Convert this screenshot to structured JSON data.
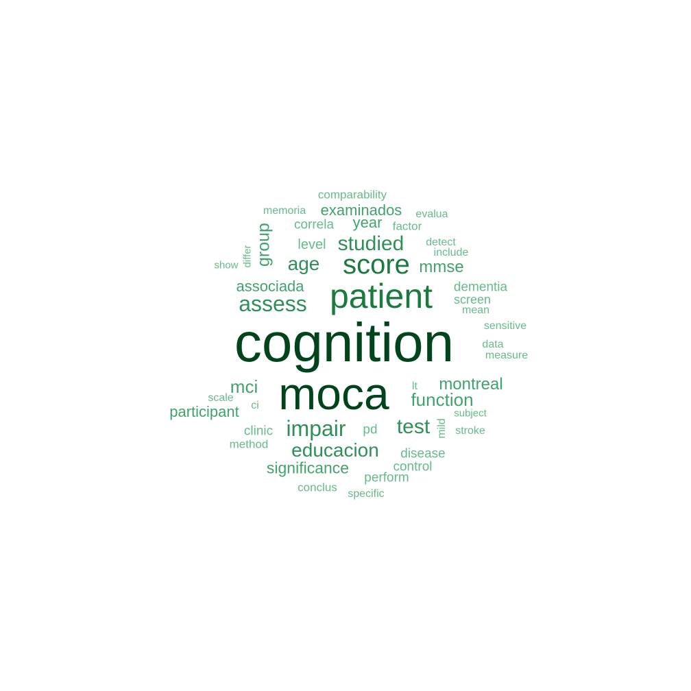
{
  "palette": {
    "tier1": "#00441b",
    "tier2": "#1b7a3e",
    "tier3": "#2f8f58",
    "tier4": "#41a36b",
    "tier5": "#66bb88"
  },
  "words": [
    {
      "text": "cognition",
      "tier": 1,
      "vertical": false
    },
    {
      "text": "moca",
      "tier": 1,
      "vertical": false
    },
    {
      "text": "patient",
      "tier": 2,
      "vertical": false
    },
    {
      "text": "score",
      "tier": 2,
      "vertical": false
    },
    {
      "text": "assess",
      "tier": 3,
      "vertical": false
    },
    {
      "text": "studied",
      "tier": 3,
      "vertical": false
    },
    {
      "text": "impair",
      "tier": 3,
      "vertical": false
    },
    {
      "text": "educacion",
      "tier": 3,
      "vertical": false
    },
    {
      "text": "test",
      "tier": 3,
      "vertical": false
    },
    {
      "text": "age",
      "tier": 3,
      "vertical": false
    },
    {
      "text": "function",
      "tier": 4,
      "vertical": false
    },
    {
      "text": "group",
      "tier": 4,
      "vertical": true
    },
    {
      "text": "mci",
      "tier": 4,
      "vertical": false
    },
    {
      "text": "montreal",
      "tier": 4,
      "vertical": false
    },
    {
      "text": "mmse",
      "tier": 4,
      "vertical": false
    },
    {
      "text": "significance",
      "tier": 4,
      "vertical": false
    },
    {
      "text": "associada",
      "tier": 4,
      "vertical": false
    },
    {
      "text": "participant",
      "tier": 4,
      "vertical": false
    },
    {
      "text": "examinados",
      "tier": 4,
      "vertical": false
    },
    {
      "text": "year",
      "tier": 4,
      "vertical": false
    },
    {
      "text": "level",
      "tier": 5,
      "vertical": false
    },
    {
      "text": "correla",
      "tier": 5,
      "vertical": false
    },
    {
      "text": "dementia",
      "tier": 5,
      "vertical": false
    },
    {
      "text": "screen",
      "tier": 5,
      "vertical": false
    },
    {
      "text": "disease",
      "tier": 5,
      "vertical": false
    },
    {
      "text": "control",
      "tier": 5,
      "vertical": false
    },
    {
      "text": "perform",
      "tier": 5,
      "vertical": false
    },
    {
      "text": "clinic",
      "tier": 5,
      "vertical": false
    },
    {
      "text": "pd",
      "tier": 5,
      "vertical": false
    },
    {
      "text": "comparability",
      "tier": 5,
      "vertical": false
    },
    {
      "text": "conclus",
      "tier": 5,
      "vertical": false
    },
    {
      "text": "method",
      "tier": 5,
      "vertical": false
    },
    {
      "text": "factor",
      "tier": 5,
      "vertical": false
    },
    {
      "text": "evalua",
      "tier": 5,
      "vertical": false
    },
    {
      "text": "memoria",
      "tier": 5,
      "vertical": false
    },
    {
      "text": "detect",
      "tier": 5,
      "vertical": false
    },
    {
      "text": "include",
      "tier": 5,
      "vertical": false
    },
    {
      "text": "mean",
      "tier": 5,
      "vertical": false
    },
    {
      "text": "sensitive",
      "tier": 5,
      "vertical": false
    },
    {
      "text": "data",
      "tier": 5,
      "vertical": false
    },
    {
      "text": "measure",
      "tier": 5,
      "vertical": false
    },
    {
      "text": "subject",
      "tier": 5,
      "vertical": false
    },
    {
      "text": "stroke",
      "tier": 5,
      "vertical": false
    },
    {
      "text": "mild",
      "tier": 5,
      "vertical": true
    },
    {
      "text": "lt",
      "tier": 5,
      "vertical": false
    },
    {
      "text": "ci",
      "tier": 5,
      "vertical": false
    },
    {
      "text": "scale",
      "tier": 5,
      "vertical": false
    },
    {
      "text": "show",
      "tier": 5,
      "vertical": false
    },
    {
      "text": "differ",
      "tier": 5,
      "vertical": true
    },
    {
      "text": "specific",
      "tier": 5,
      "vertical": false
    }
  ]
}
